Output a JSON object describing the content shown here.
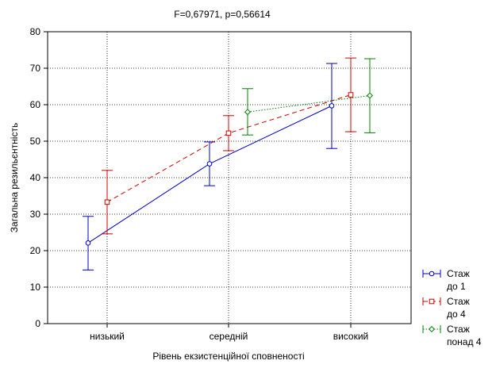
{
  "chart_data": {
    "type": "line",
    "title": "F=0,67971, p=0,56614",
    "xlabel": "Рівень екзистенційної сповненості",
    "ylabel": "Загальна резильєнтність",
    "categories": [
      "низький",
      "середній",
      "високий"
    ],
    "ylim": [
      0,
      80
    ],
    "yticks": [
      "0",
      "10",
      "20",
      "30",
      "40",
      "50",
      "60",
      "70",
      "80"
    ],
    "grid": true,
    "legend_position": "bottom-right",
    "series": [
      {
        "name": "Стаж до 1",
        "legend_lines": [
          "Стаж",
          "до 1"
        ],
        "color": "#0000c0",
        "marker": "circle",
        "line_style": "solid",
        "values": [
          22.1,
          43.8,
          59.7
        ],
        "lower": [
          14.7,
          37.8,
          48.0
        ],
        "upper": [
          29.4,
          49.8,
          71.3
        ]
      },
      {
        "name": "Стаж до 4",
        "legend_lines": [
          "Стаж",
          "до 4"
        ],
        "color": "#d00000",
        "marker": "square",
        "line_style": "dashed",
        "values": [
          33.3,
          52.2,
          62.7
        ],
        "lower": [
          24.6,
          47.4,
          52.6
        ],
        "upper": [
          42.0,
          57.0,
          72.8
        ]
      },
      {
        "name": "Стаж понад 4",
        "legend_lines": [
          "Стаж",
          "понад 4"
        ],
        "color": "#008000",
        "marker": "diamond",
        "line_style": "dotted",
        "values": [
          null,
          58.0,
          62.5
        ],
        "lower": [
          null,
          51.7,
          52.3
        ],
        "upper": [
          null,
          64.4,
          72.6
        ]
      }
    ]
  }
}
